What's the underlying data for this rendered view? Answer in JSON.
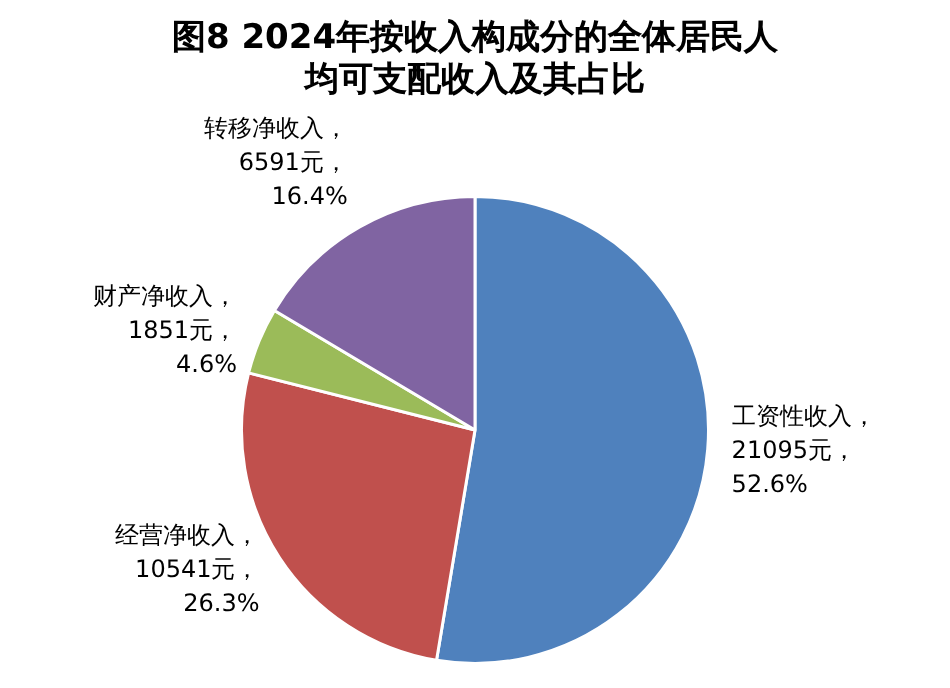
{
  "chart_data": {
    "type": "pie",
    "title": "图8 2024年按收入构成分的全体居民人均可支配收入及其占比",
    "categories": [
      "工资性收入",
      "经营净收入",
      "财产净收入",
      "转移净收入"
    ],
    "values": [
      21095,
      10541,
      1851,
      6591
    ],
    "colors": [
      "#4f81bd",
      "#c0504d",
      "#9bbb59",
      "#8064a2"
    ],
    "value_labels": [
      "，\n21095元，\n52.6%",
      "，\n10541元，\n26.3%",
      "，\n1851元，\n4.6%",
      "，\n6591元，\n16.4%"
    ],
    "legend": false
  }
}
